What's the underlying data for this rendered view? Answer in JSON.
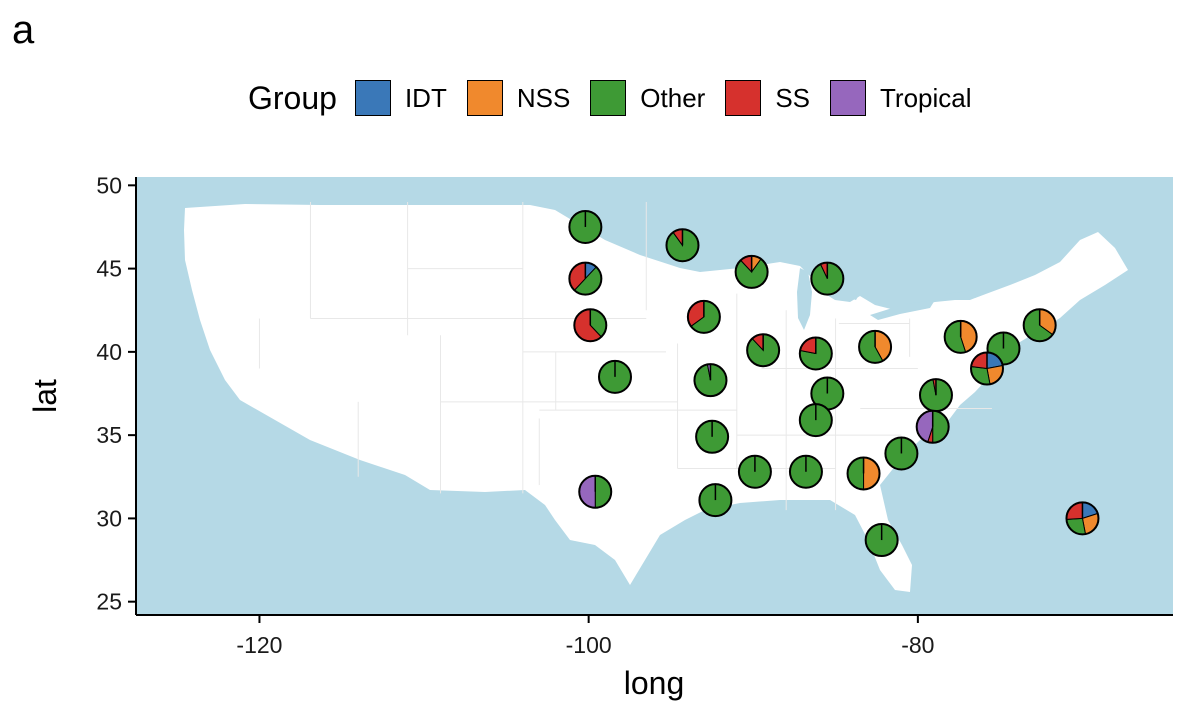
{
  "panel_label": "a",
  "colors": {
    "IDT": "#3a78b8",
    "NSS": "#f0892d",
    "Other": "#3e9a35",
    "SS": "#d6312d",
    "Tropical": "#9667bd",
    "ocean": "#b5d9e6",
    "land": "#ffffff"
  },
  "legend": {
    "title": "Group",
    "items": [
      {
        "label": "IDT",
        "color": "#3a78b8"
      },
      {
        "label": "NSS",
        "color": "#f0892d"
      },
      {
        "label": "Other",
        "color": "#3e9a35"
      },
      {
        "label": "SS",
        "color": "#d6312d"
      },
      {
        "label": "Tropical",
        "color": "#9667bd"
      }
    ]
  },
  "chart_data": {
    "type": "map-pie",
    "title": "",
    "xlabel": "long",
    "ylabel": "lat",
    "xlim": [
      -127.5,
      -64.5
    ],
    "ylim": [
      24.2,
      50.5
    ],
    "xticks": [
      -120,
      -100,
      -80
    ],
    "yticks": [
      25,
      30,
      35,
      40,
      45,
      50
    ],
    "grid": false,
    "legend_position": "top",
    "group_order": [
      "IDT",
      "NSS",
      "Other",
      "SS",
      "Tropical"
    ],
    "points": [
      {
        "long": -100.2,
        "lat": 47.5,
        "IDT": 0,
        "NSS": 0,
        "Other": 1.0,
        "SS": 0,
        "Tropical": 0
      },
      {
        "long": -94.3,
        "lat": 46.4,
        "IDT": 0,
        "NSS": 0,
        "Other": 0.9,
        "SS": 0.1,
        "Tropical": 0
      },
      {
        "long": -90.1,
        "lat": 44.8,
        "IDT": 0,
        "NSS": 0.1,
        "Other": 0.78,
        "SS": 0.12,
        "Tropical": 0
      },
      {
        "long": -85.5,
        "lat": 44.4,
        "IDT": 0,
        "NSS": 0,
        "Other": 0.93,
        "SS": 0.07,
        "Tropical": 0
      },
      {
        "long": -100.2,
        "lat": 44.4,
        "IDT": 0.12,
        "NSS": 0,
        "Other": 0.5,
        "SS": 0.38,
        "Tropical": 0
      },
      {
        "long": -93.0,
        "lat": 42.1,
        "IDT": 0,
        "NSS": 0,
        "Other": 0.65,
        "SS": 0.35,
        "Tropical": 0
      },
      {
        "long": -99.9,
        "lat": 41.6,
        "IDT": 0,
        "NSS": 0,
        "Other": 0.38,
        "SS": 0.62,
        "Tropical": 0
      },
      {
        "long": -98.4,
        "lat": 38.5,
        "IDT": 0,
        "NSS": 0,
        "Other": 1.0,
        "SS": 0,
        "Tropical": 0
      },
      {
        "long": -92.6,
        "lat": 38.3,
        "IDT": 0,
        "NSS": 0,
        "Other": 0.97,
        "SS": 0,
        "Tropical": 0.03
      },
      {
        "long": -89.4,
        "lat": 40.1,
        "IDT": 0,
        "NSS": 0,
        "Other": 0.88,
        "SS": 0.12,
        "Tropical": 0
      },
      {
        "long": -86.2,
        "lat": 39.9,
        "IDT": 0,
        "NSS": 0,
        "Other": 0.78,
        "SS": 0.22,
        "Tropical": 0
      },
      {
        "long": -82.6,
        "lat": 40.3,
        "IDT": 0,
        "NSS": 0.42,
        "Other": 0.58,
        "SS": 0,
        "Tropical": 0
      },
      {
        "long": -77.4,
        "lat": 40.9,
        "IDT": 0,
        "NSS": 0.45,
        "Other": 0.55,
        "SS": 0,
        "Tropical": 0
      },
      {
        "long": -72.6,
        "lat": 41.6,
        "IDT": 0,
        "NSS": 0.35,
        "Other": 0.65,
        "SS": 0,
        "Tropical": 0
      },
      {
        "long": -74.8,
        "lat": 40.2,
        "IDT": 0,
        "NSS": 0,
        "Other": 1.0,
        "SS": 0,
        "Tropical": 0
      },
      {
        "long": -75.8,
        "lat": 39.0,
        "IDT": 0.22,
        "NSS": 0.25,
        "Other": 0.3,
        "SS": 0.23,
        "Tropical": 0
      },
      {
        "long": -85.5,
        "lat": 37.5,
        "IDT": 0,
        "NSS": 0,
        "Other": 1.0,
        "SS": 0,
        "Tropical": 0
      },
      {
        "long": -78.9,
        "lat": 37.4,
        "IDT": 0,
        "NSS": 0,
        "Other": 0.97,
        "SS": 0.03,
        "Tropical": 0
      },
      {
        "long": -86.2,
        "lat": 35.9,
        "IDT": 0,
        "NSS": 0,
        "Other": 1.0,
        "SS": 0,
        "Tropical": 0
      },
      {
        "long": -79.1,
        "lat": 35.5,
        "IDT": 0,
        "NSS": 0,
        "Other": 0.5,
        "SS": 0.05,
        "Tropical": 0.45
      },
      {
        "long": -92.5,
        "lat": 34.9,
        "IDT": 0,
        "NSS": 0,
        "Other": 1.0,
        "SS": 0,
        "Tropical": 0
      },
      {
        "long": -81.0,
        "lat": 33.9,
        "IDT": 0,
        "NSS": 0,
        "Other": 1.0,
        "SS": 0,
        "Tropical": 0
      },
      {
        "long": -89.9,
        "lat": 32.8,
        "IDT": 0,
        "NSS": 0,
        "Other": 1.0,
        "SS": 0,
        "Tropical": 0
      },
      {
        "long": -86.8,
        "lat": 32.8,
        "IDT": 0,
        "NSS": 0,
        "Other": 1.0,
        "SS": 0,
        "Tropical": 0
      },
      {
        "long": -83.3,
        "lat": 32.7,
        "IDT": 0,
        "NSS": 0.5,
        "Other": 0.5,
        "SS": 0,
        "Tropical": 0
      },
      {
        "long": -99.6,
        "lat": 31.6,
        "IDT": 0,
        "NSS": 0,
        "Other": 0.5,
        "SS": 0,
        "Tropical": 0.5
      },
      {
        "long": -92.3,
        "lat": 31.1,
        "IDT": 0,
        "NSS": 0,
        "Other": 1.0,
        "SS": 0,
        "Tropical": 0
      },
      {
        "long": -82.2,
        "lat": 28.7,
        "IDT": 0,
        "NSS": 0,
        "Other": 1.0,
        "SS": 0,
        "Tropical": 0
      },
      {
        "long": -70.0,
        "lat": 30.0,
        "IDT": 0.2,
        "NSS": 0.27,
        "Other": 0.27,
        "SS": 0.26,
        "Tropical": 0
      }
    ]
  }
}
